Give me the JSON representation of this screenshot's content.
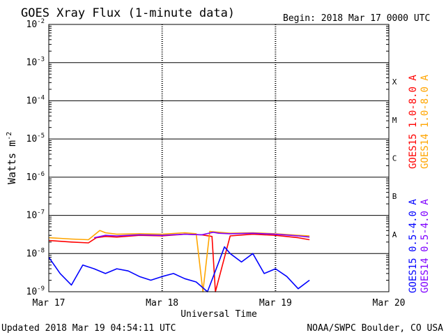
{
  "chart_data": {
    "type": "line",
    "title": "GOES Xray Flux (1-minute data)",
    "begin_label": "Begin:  2018 Mar 17 0000 UTC",
    "xlabel": "Universal Time",
    "ylabel_text": "Watts m",
    "ylabel_sup": "-2",
    "x_ticks": [
      "Mar 17",
      "Mar 18",
      "Mar 19",
      "Mar 20"
    ],
    "x_range_days": [
      0,
      3
    ],
    "y_scale": "log",
    "ylim": [
      1e-09,
      0.01
    ],
    "y_tick_mantissa": [
      "10",
      "10",
      "10",
      "10",
      "10",
      "10",
      "10",
      "10"
    ],
    "y_tick_exponents": [
      "-9",
      "-8",
      "-7",
      "-6",
      "-5",
      "-4",
      "-3",
      "-2"
    ],
    "flare_classes": [
      "A",
      "B",
      "C",
      "M",
      "X"
    ],
    "grid": true,
    "series": [
      {
        "name": "GOES15 1.0-8.0 A",
        "color": "#ff0000",
        "x": [
          0,
          0.2,
          0.35,
          0.42,
          0.5,
          0.6,
          0.8,
          1.0,
          1.2,
          1.35,
          1.44,
          1.47,
          1.6,
          1.8,
          2.0,
          2.2,
          2.3
        ],
        "y": [
          2.2e-08,
          2e-08,
          1.9e-08,
          2.6e-08,
          2.8e-08,
          2.7e-08,
          3e-08,
          2.9e-08,
          3.2e-08,
          3.1e-08,
          2.8e-08,
          1e-09,
          2.9e-08,
          3.2e-08,
          3e-08,
          2.6e-08,
          2.3e-08
        ]
      },
      {
        "name": "GOES14 1.0-8.0 A",
        "color": "#ffa500",
        "x": [
          0,
          0.2,
          0.35,
          0.45,
          0.5,
          0.6,
          0.8,
          1.0,
          1.2,
          1.3,
          1.36,
          1.42,
          1.5,
          1.6,
          1.8,
          2.0,
          2.2,
          2.3
        ],
        "y": [
          2.6e-08,
          2.4e-08,
          2.3e-08,
          4e-08,
          3.5e-08,
          3.2e-08,
          3.3e-08,
          3.2e-08,
          3.5e-08,
          3.3e-08,
          1e-09,
          3.8e-08,
          3.6e-08,
          3.4e-08,
          3.5e-08,
          3.3e-08,
          3e-08,
          2.9e-08
        ]
      },
      {
        "name": "GOES15 0.5-4.0 A",
        "color": "#0000ff",
        "x": [
          0,
          0.1,
          0.2,
          0.3,
          0.4,
          0.5,
          0.6,
          0.7,
          0.8,
          0.9,
          1.0,
          1.1,
          1.2,
          1.3,
          1.4,
          1.5,
          1.55,
          1.6,
          1.7,
          1.8,
          1.9,
          2.0,
          2.1,
          2.2,
          2.3
        ],
        "y": [
          8e-09,
          3e-09,
          1.5e-09,
          5e-09,
          4e-09,
          3e-09,
          4e-09,
          3.5e-09,
          2.5e-09,
          2e-09,
          2.5e-09,
          3e-09,
          2.2e-09,
          1.8e-09,
          1e-09,
          6e-09,
          1.5e-08,
          1e-08,
          6e-09,
          1e-08,
          3e-09,
          4e-09,
          2.5e-09,
          1.2e-09,
          2e-09
        ]
      },
      {
        "name": "GOES14 0.5-4.0 A",
        "color": "#7f00ff",
        "x": [
          0.4,
          0.5,
          0.6,
          0.8,
          1.0,
          1.2,
          1.35,
          1.45,
          1.5,
          1.6,
          1.8,
          2.0,
          2.2,
          2.3
        ],
        "y": [
          2.6e-08,
          3e-08,
          2.9e-08,
          3.1e-08,
          3e-08,
          3.2e-08,
          3.1e-08,
          3.6e-08,
          3.4e-08,
          3.3e-08,
          3.4e-08,
          3.2e-08,
          2.9e-08,
          2.7e-08
        ]
      }
    ]
  },
  "footer": {
    "updated": "Updated 2018 Mar 19 04:54:11 UTC",
    "source": "NOAA/SWPC Boulder, CO USA"
  }
}
